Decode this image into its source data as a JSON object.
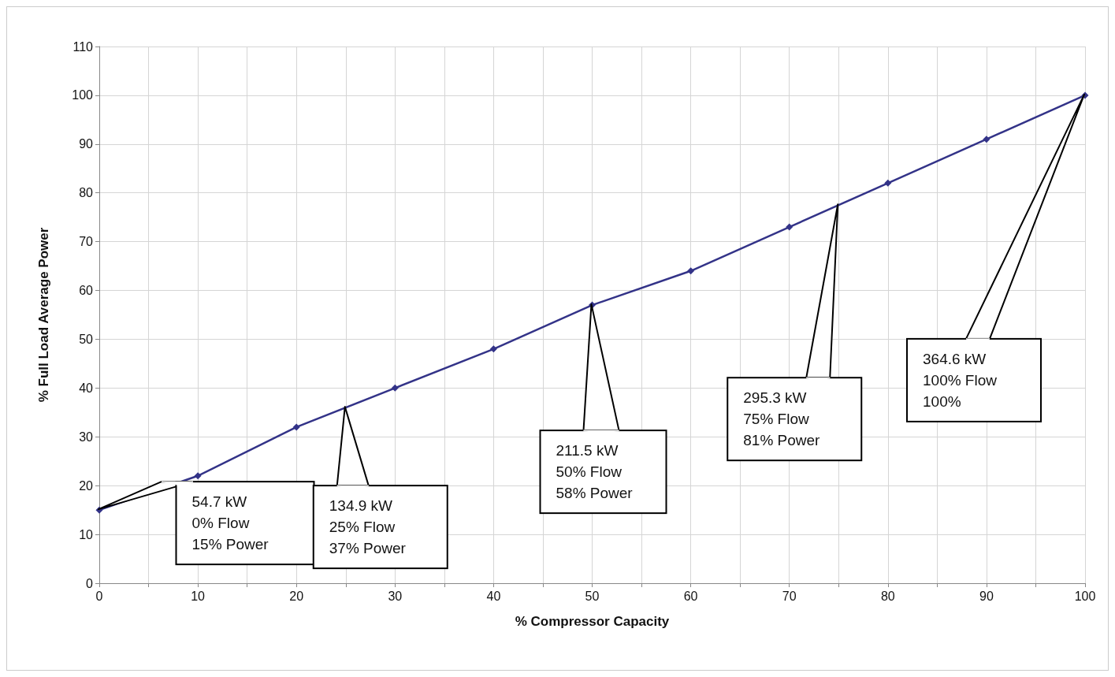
{
  "chart_data": {
    "type": "line",
    "xlabel": "% Compressor Capacity",
    "ylabel": "% Full Load Average Power",
    "x": [
      0,
      10,
      20,
      30,
      40,
      50,
      60,
      70,
      80,
      90,
      100
    ],
    "series": [
      {
        "color": "#333388",
        "values": [
          15,
          22,
          32,
          40,
          48,
          57,
          64,
          73,
          82,
          91,
          100
        ]
      }
    ],
    "xlim": [
      0,
      100
    ],
    "ylim": [
      0,
      110
    ],
    "xticks": [
      0,
      {
        "value": 5,
        "label": null
      },
      10,
      {
        "value": 15,
        "label": null
      },
      20,
      {
        "value": 25,
        "label": null
      },
      30,
      {
        "value": 35,
        "label": null
      },
      40,
      {
        "value": 45,
        "label": null
      },
      50,
      {
        "value": 55,
        "label": null
      },
      60,
      {
        "value": 65,
        "label": null
      },
      70,
      {
        "value": 75,
        "label": null
      },
      80,
      {
        "value": 85,
        "label": null
      },
      90,
      {
        "value": 95,
        "label": null
      },
      100
    ],
    "yticks": [
      0,
      10,
      20,
      30,
      40,
      50,
      60,
      70,
      80,
      90,
      100,
      110
    ],
    "grid": true,
    "marker": "diamond",
    "line_style": "solid",
    "annotations": [
      {
        "text": "54.7 kW\n0% Flow\n15% Power",
        "x": 0,
        "y": 15
      },
      {
        "text": "134.9 kW\n25% Flow\n37% Power",
        "x": 25,
        "y": 36
      },
      {
        "text": "211.5 kW\n50% Flow\n58% Power",
        "x": 50,
        "y": 57
      },
      {
        "text": "295.3 kW\n75% Flow\n81% Power",
        "x": 75,
        "y": 77.5
      },
      {
        "text": "364.6 kW\n100% Flow\n100%",
        "x": 100,
        "y": 100
      }
    ]
  }
}
